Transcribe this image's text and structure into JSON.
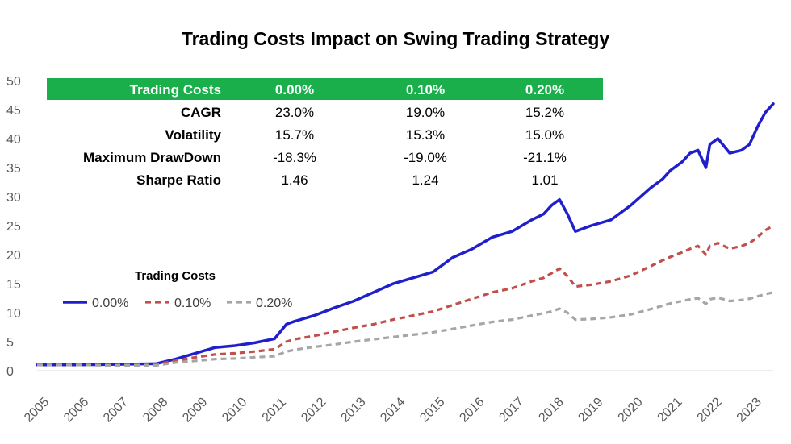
{
  "chart_data": {
    "type": "line",
    "title": "Trading Costs Impact on Swing Trading Strategy",
    "xlabel": "",
    "ylabel": "",
    "ylim": [
      0,
      50
    ],
    "yticks": [
      "0",
      "5",
      "10",
      "15",
      "20",
      "25",
      "30",
      "35",
      "40",
      "45",
      "50"
    ],
    "xticks": [
      "2005",
      "2006",
      "2007",
      "2008",
      "2009",
      "2010",
      "2011",
      "2012",
      "2013",
      "2014",
      "2015",
      "2016",
      "2017",
      "2018",
      "2019",
      "2020",
      "2021",
      "2022",
      "2023"
    ],
    "xlim": [
      2005,
      2023.6
    ],
    "legend": {
      "title": "Trading Costs",
      "position": "middle-left",
      "entries": [
        "0.00%",
        "0.10%",
        "0.20%"
      ]
    },
    "series": [
      {
        "name": "0.00%",
        "color": "#1f1fcc",
        "style": "solid",
        "x": [
          2005,
          2006,
          2007,
          2008,
          2008.5,
          2009,
          2009.5,
          2010,
          2010.5,
          2011,
          2011.3,
          2011.5,
          2012,
          2012.5,
          2013,
          2013.5,
          2014,
          2014.5,
          2015,
          2015.5,
          2016,
          2016.5,
          2017,
          2017.5,
          2017.8,
          2018,
          2018.2,
          2018.4,
          2018.6,
          2019,
          2019.5,
          2020,
          2020.5,
          2020.8,
          2021,
          2021.3,
          2021.5,
          2021.7,
          2021.9,
          2022,
          2022.2,
          2022.5,
          2022.8,
          2023,
          2023.2,
          2023.4,
          2023.6
        ],
        "values": [
          1.0,
          1.0,
          1.1,
          1.2,
          2.0,
          3.0,
          4.0,
          4.3,
          4.8,
          5.5,
          8.0,
          8.5,
          9.5,
          10.8,
          12.0,
          13.5,
          15.0,
          16.0,
          17.0,
          19.5,
          21.0,
          23.0,
          24.0,
          26.0,
          27.0,
          28.5,
          29.5,
          27.0,
          24.0,
          25.0,
          26.0,
          28.5,
          31.5,
          33.0,
          34.5,
          36.0,
          37.5,
          38.0,
          35.0,
          39.0,
          40.0,
          37.5,
          38.0,
          39.0,
          42.0,
          44.5,
          46.0
        ]
      },
      {
        "name": "0.10%",
        "color": "#c0504d",
        "style": "dashed",
        "x": [
          2005,
          2006,
          2007,
          2008,
          2008.5,
          2009,
          2009.5,
          2010,
          2010.5,
          2011,
          2011.3,
          2011.5,
          2012,
          2012.5,
          2013,
          2013.5,
          2014,
          2014.5,
          2015,
          2015.5,
          2016,
          2016.5,
          2017,
          2017.5,
          2017.8,
          2018,
          2018.2,
          2018.4,
          2018.6,
          2019,
          2019.5,
          2020,
          2020.5,
          2020.8,
          2021,
          2021.3,
          2021.5,
          2021.7,
          2021.9,
          2022,
          2022.2,
          2022.5,
          2022.8,
          2023,
          2023.2,
          2023.4,
          2023.6
        ],
        "values": [
          1.0,
          1.0,
          1.0,
          1.1,
          1.7,
          2.3,
          2.8,
          3.0,
          3.3,
          3.7,
          5.0,
          5.4,
          6.0,
          6.7,
          7.4,
          8.0,
          8.8,
          9.5,
          10.2,
          11.3,
          12.4,
          13.5,
          14.2,
          15.4,
          16.0,
          16.8,
          17.6,
          16.3,
          14.5,
          14.8,
          15.4,
          16.4,
          18.0,
          19.0,
          19.6,
          20.4,
          21.0,
          21.5,
          20.0,
          21.5,
          22.0,
          21.0,
          21.5,
          22.0,
          23.0,
          24.2,
          25.0
        ]
      },
      {
        "name": "0.20%",
        "color": "#a6a6a6",
        "style": "dashed",
        "x": [
          2005,
          2006,
          2007,
          2008,
          2008.5,
          2009,
          2009.5,
          2010,
          2010.5,
          2011,
          2011.3,
          2011.5,
          2012,
          2012.5,
          2013,
          2013.5,
          2014,
          2014.5,
          2015,
          2015.5,
          2016,
          2016.5,
          2017,
          2017.5,
          2017.8,
          2018,
          2018.2,
          2018.4,
          2018.6,
          2019,
          2019.5,
          2020,
          2020.5,
          2020.8,
          2021,
          2021.3,
          2021.5,
          2021.7,
          2021.9,
          2022,
          2022.2,
          2022.5,
          2022.8,
          2023,
          2023.2,
          2023.4,
          2023.6
        ],
        "values": [
          1.0,
          1.0,
          0.9,
          0.9,
          1.4,
          1.7,
          2.0,
          2.1,
          2.3,
          2.5,
          3.3,
          3.6,
          4.1,
          4.5,
          5.0,
          5.4,
          5.8,
          6.2,
          6.6,
          7.2,
          7.8,
          8.4,
          8.8,
          9.5,
          9.9,
          10.2,
          10.7,
          10.0,
          8.8,
          8.9,
          9.2,
          9.7,
          10.6,
          11.2,
          11.6,
          12.0,
          12.3,
          12.5,
          11.5,
          12.3,
          12.6,
          12.0,
          12.2,
          12.4,
          12.8,
          13.2,
          13.5
        ]
      }
    ],
    "table": {
      "header_bg": "#1aaf4b",
      "header_label": "Trading Costs",
      "columns": [
        "0.00%",
        "0.10%",
        "0.20%"
      ],
      "rows": [
        {
          "label": "CAGR",
          "values": [
            "23.0%",
            "19.0%",
            "15.2%"
          ]
        },
        {
          "label": "Volatility",
          "values": [
            "15.7%",
            "15.3%",
            "15.0%"
          ]
        },
        {
          "label": "Maximum DrawDown",
          "values": [
            "-18.3%",
            "-19.0%",
            "-21.1%"
          ]
        },
        {
          "label": "Sharpe Ratio",
          "values": [
            "1.46",
            "1.24",
            "1.01"
          ]
        }
      ]
    }
  }
}
